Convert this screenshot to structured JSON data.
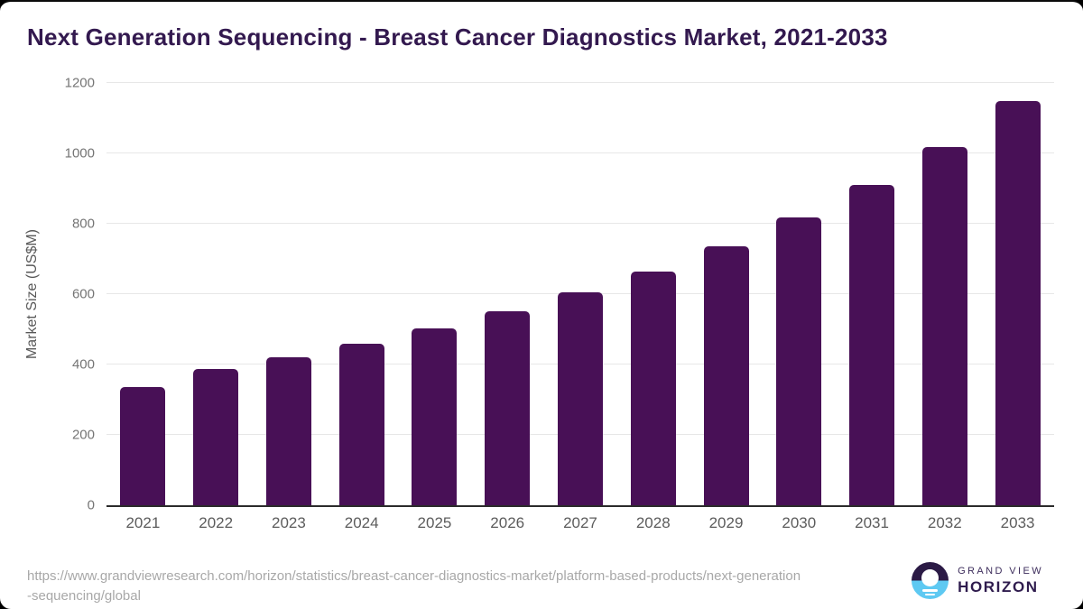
{
  "chart_data": {
    "type": "bar",
    "title": "Next Generation Sequencing - Breast Cancer Diagnostics Market, 2021-2033",
    "ylabel": "Market Size (US$M)",
    "xlabel": "",
    "categories": [
      "2021",
      "2022",
      "2023",
      "2024",
      "2025",
      "2026",
      "2027",
      "2028",
      "2029",
      "2030",
      "2031",
      "2032",
      "2033"
    ],
    "values": [
      337,
      388,
      421,
      459,
      502,
      551,
      606,
      665,
      736,
      818,
      910,
      1019,
      1148
    ],
    "ylim": [
      0,
      1200
    ],
    "yticks": [
      0,
      200,
      400,
      600,
      800,
      1000,
      1200
    ],
    "grid": "horizontal",
    "legend": "none",
    "bar_color": "#481056"
  },
  "footer": {
    "source_url_line1": "https://www.grandviewresearch.com/horizon/statistics/breast-cancer-diagnostics-market/platform-based-products/next-generation",
    "source_url_line2": "-sequencing/global"
  },
  "logo": {
    "brand_top": "GRAND VIEW",
    "brand_bottom": "HORIZON",
    "icon": "horizon-sunrise-circle-icon",
    "colors": {
      "dark_purple": "#2b1a45",
      "light_blue": "#5ec9f2"
    }
  },
  "colors": {
    "title_text": "#33194f",
    "bar": "#481056",
    "axis_text": "#757575",
    "gridline": "#e7e7e7",
    "baseline": "#2b2b2b",
    "source_text": "#a8a8a8"
  }
}
